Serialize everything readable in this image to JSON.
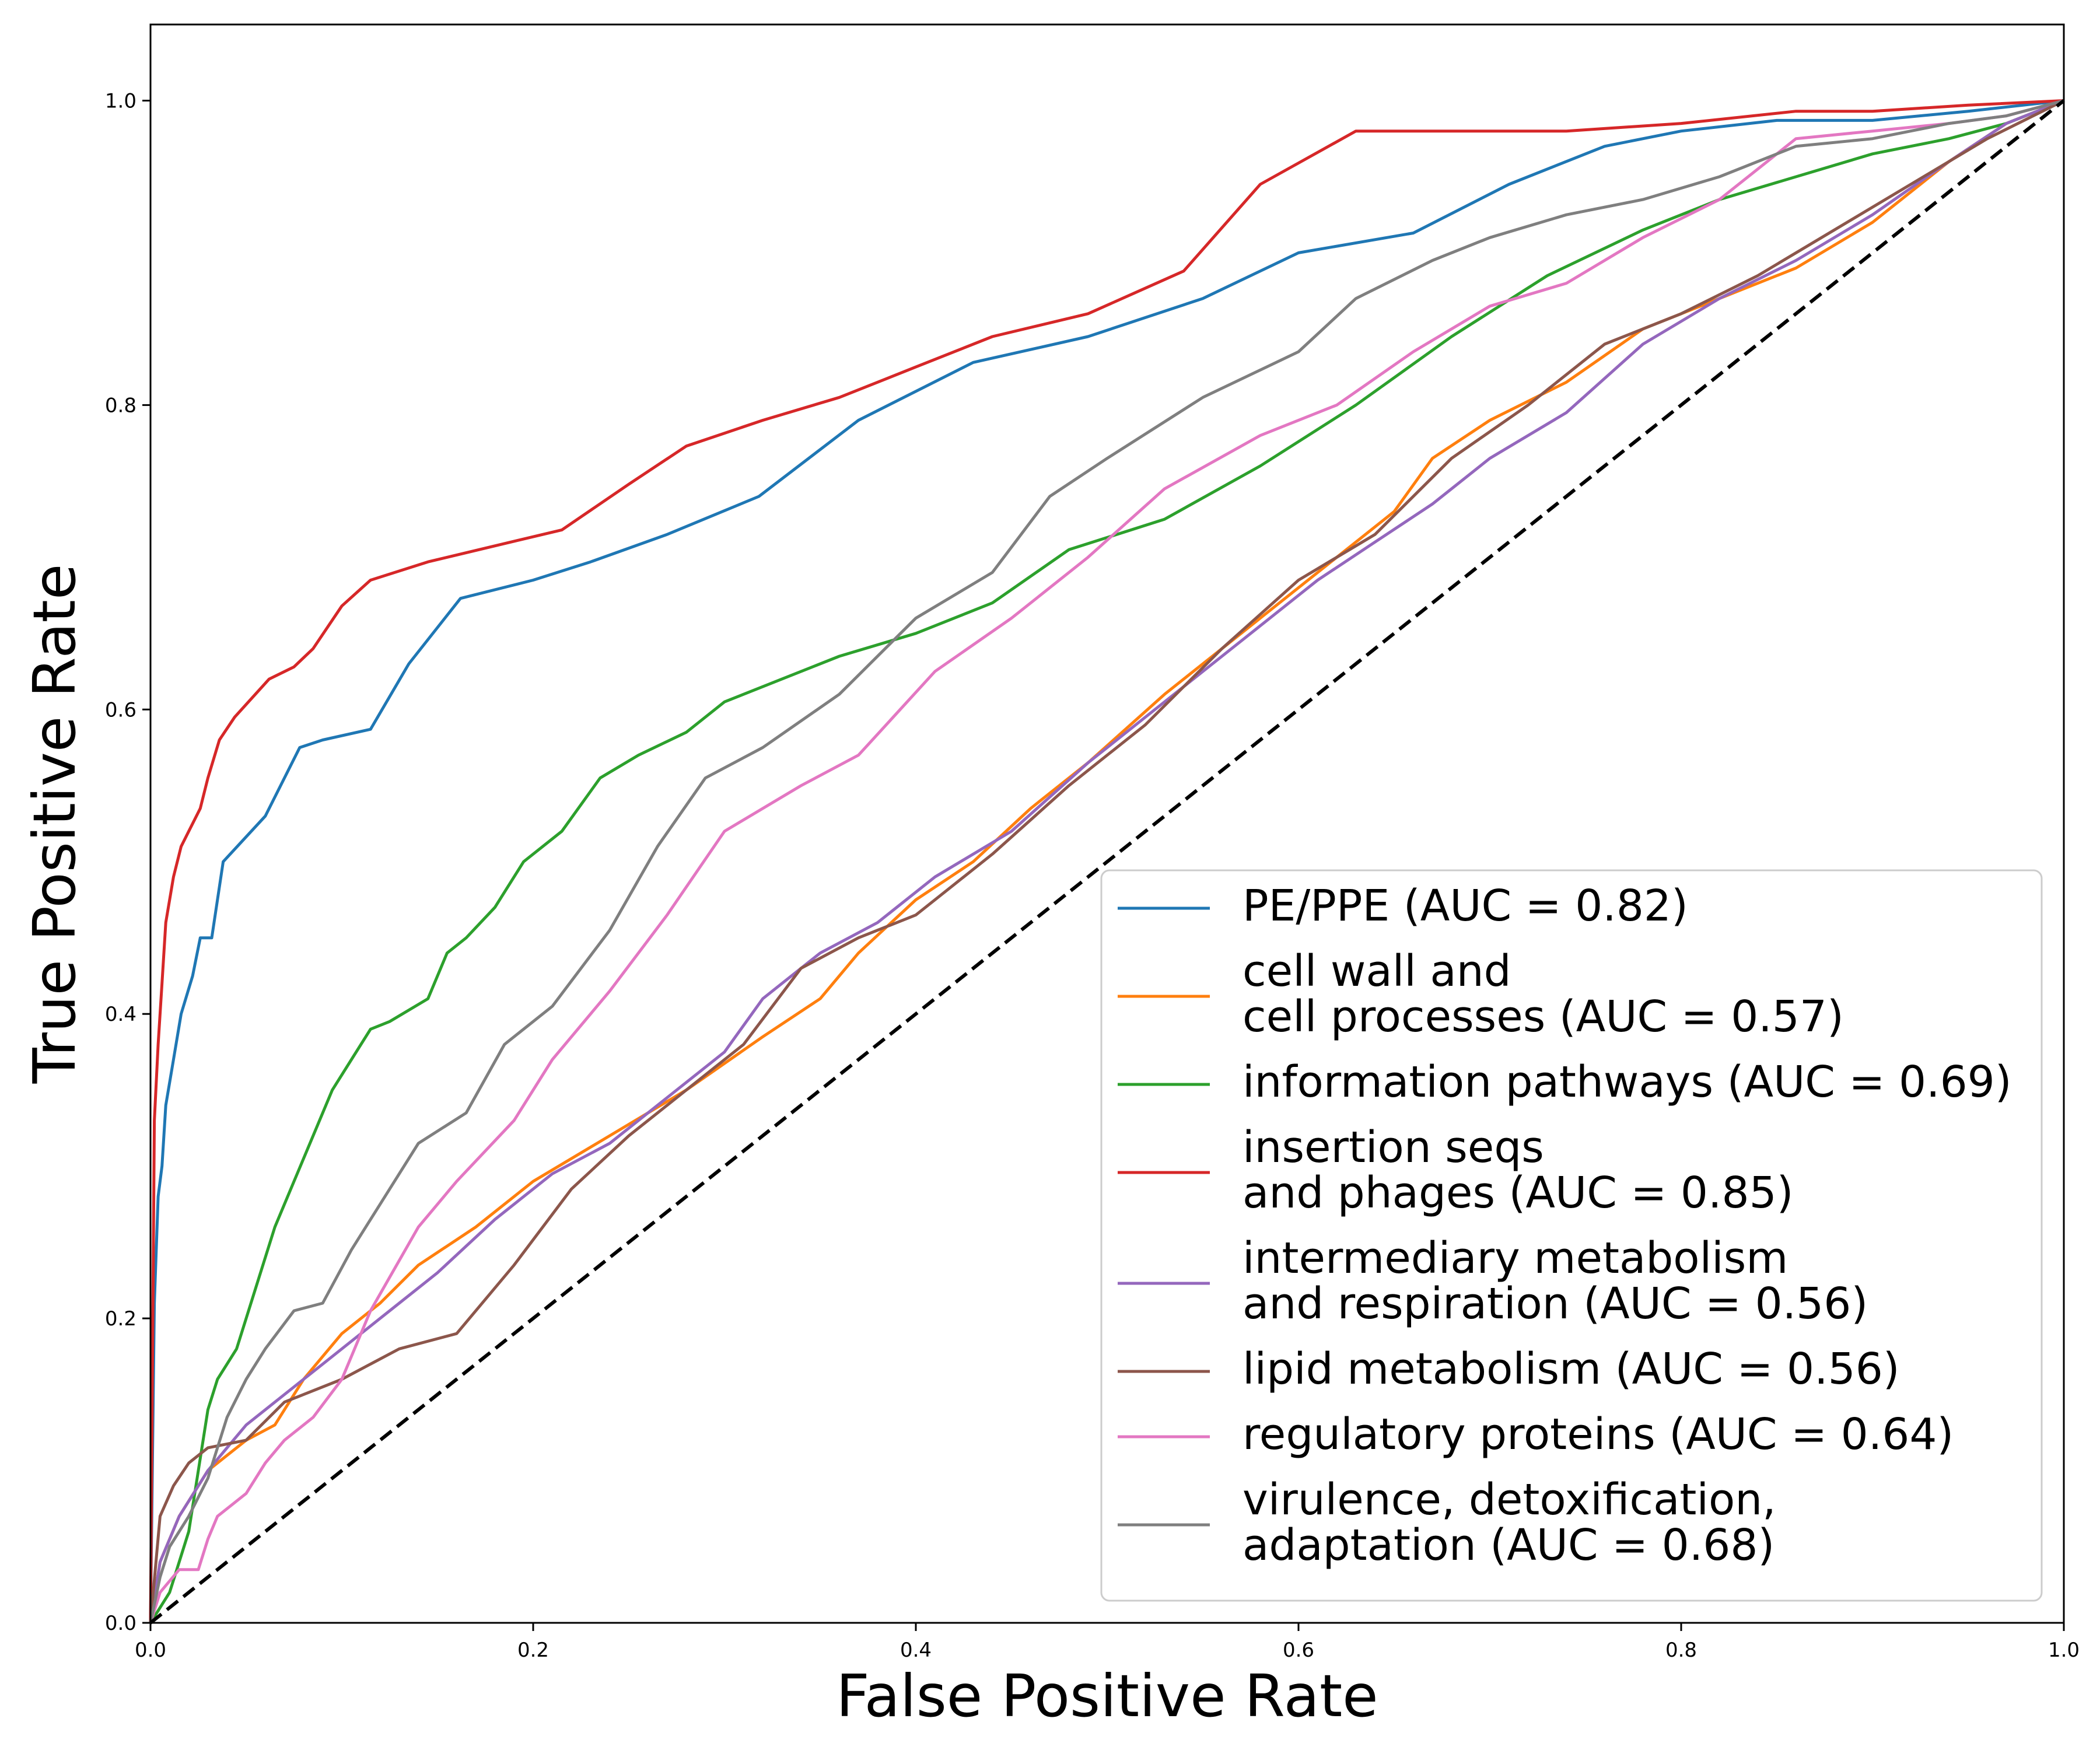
{
  "chart_data": {
    "type": "line",
    "title": "",
    "xlabel": "False Positive Rate",
    "ylabel": "True Positive Rate",
    "xlim": [
      0.0,
      1.0
    ],
    "ylim": [
      0.0,
      1.05
    ],
    "xticks": [
      "0.0",
      "0.2",
      "0.4",
      "0.6",
      "0.8",
      "1.0"
    ],
    "yticks": [
      "0.0",
      "0.2",
      "0.4",
      "0.6",
      "0.8",
      "1.0"
    ],
    "grid": false,
    "legend_position": "lower-right",
    "reference_line": {
      "style": "dashed",
      "color": "#000000",
      "x": [
        0,
        1
      ],
      "y": [
        0,
        1
      ]
    },
    "series": [
      {
        "name": "PE/PPE (AUC = 0.82)",
        "color": "#1f77b4",
        "x": [
          0.0,
          0.002,
          0.004,
          0.006,
          0.008,
          0.012,
          0.016,
          0.022,
          0.026,
          0.032,
          0.038,
          0.06,
          0.078,
          0.09,
          0.115,
          0.135,
          0.162,
          0.2,
          0.23,
          0.27,
          0.318,
          0.37,
          0.43,
          0.49,
          0.55,
          0.6,
          0.66,
          0.71,
          0.76,
          0.8,
          0.85,
          0.9,
          0.95,
          1.0
        ],
        "y": [
          0.0,
          0.21,
          0.28,
          0.3,
          0.34,
          0.37,
          0.4,
          0.425,
          0.45,
          0.45,
          0.5,
          0.53,
          0.575,
          0.58,
          0.587,
          0.63,
          0.673,
          0.685,
          0.697,
          0.715,
          0.74,
          0.79,
          0.828,
          0.845,
          0.87,
          0.9,
          0.913,
          0.945,
          0.97,
          0.98,
          0.987,
          0.987,
          0.993,
          1.0
        ]
      },
      {
        "name": "cell wall and\ncell processes (AUC = 0.57)",
        "color": "#ff7f0e",
        "x": [
          0.0,
          0.005,
          0.015,
          0.03,
          0.05,
          0.065,
          0.08,
          0.1,
          0.12,
          0.14,
          0.17,
          0.2,
          0.24,
          0.28,
          0.32,
          0.35,
          0.37,
          0.4,
          0.43,
          0.46,
          0.49,
          0.53,
          0.58,
          0.62,
          0.65,
          0.67,
          0.7,
          0.74,
          0.78,
          0.82,
          0.86,
          0.9,
          0.94,
          0.97,
          1.0
        ],
        "y": [
          0.0,
          0.04,
          0.07,
          0.1,
          0.12,
          0.13,
          0.16,
          0.19,
          0.21,
          0.235,
          0.26,
          0.29,
          0.32,
          0.35,
          0.385,
          0.41,
          0.44,
          0.475,
          0.5,
          0.535,
          0.565,
          0.61,
          0.66,
          0.7,
          0.73,
          0.765,
          0.79,
          0.815,
          0.85,
          0.87,
          0.89,
          0.92,
          0.96,
          0.985,
          1.0
        ]
      },
      {
        "name": "information pathways (AUC = 0.69)",
        "color": "#2ca02c",
        "x": [
          0.0,
          0.005,
          0.01,
          0.015,
          0.02,
          0.025,
          0.03,
          0.035,
          0.045,
          0.055,
          0.065,
          0.075,
          0.085,
          0.095,
          0.105,
          0.115,
          0.125,
          0.145,
          0.155,
          0.165,
          0.18,
          0.195,
          0.215,
          0.235,
          0.255,
          0.28,
          0.3,
          0.33,
          0.36,
          0.4,
          0.44,
          0.48,
          0.53,
          0.58,
          0.63,
          0.68,
          0.73,
          0.78,
          0.82,
          0.86,
          0.9,
          0.94,
          0.97,
          1.0
        ],
        "y": [
          0.0,
          0.01,
          0.02,
          0.04,
          0.06,
          0.1,
          0.14,
          0.16,
          0.18,
          0.22,
          0.26,
          0.29,
          0.32,
          0.35,
          0.37,
          0.39,
          0.395,
          0.41,
          0.44,
          0.45,
          0.47,
          0.5,
          0.52,
          0.555,
          0.57,
          0.585,
          0.605,
          0.62,
          0.635,
          0.65,
          0.67,
          0.705,
          0.725,
          0.76,
          0.8,
          0.845,
          0.885,
          0.915,
          0.935,
          0.95,
          0.965,
          0.975,
          0.985,
          1.0
        ]
      },
      {
        "name": "insertion seqs\nand phages (AUC = 0.85)",
        "color": "#d62728",
        "x": [
          0.0,
          0.002,
          0.004,
          0.006,
          0.008,
          0.012,
          0.016,
          0.02,
          0.026,
          0.03,
          0.036,
          0.044,
          0.062,
          0.075,
          0.085,
          0.1,
          0.115,
          0.145,
          0.175,
          0.215,
          0.25,
          0.28,
          0.32,
          0.36,
          0.4,
          0.44,
          0.49,
          0.54,
          0.58,
          0.63,
          0.7,
          0.74,
          0.8,
          0.86,
          0.9,
          0.95,
          1.0
        ],
        "y": [
          0.0,
          0.33,
          0.38,
          0.42,
          0.46,
          0.49,
          0.51,
          0.52,
          0.535,
          0.555,
          0.58,
          0.595,
          0.62,
          0.628,
          0.64,
          0.668,
          0.685,
          0.697,
          0.706,
          0.718,
          0.748,
          0.773,
          0.79,
          0.805,
          0.825,
          0.845,
          0.86,
          0.888,
          0.945,
          0.98,
          0.98,
          0.98,
          0.985,
          0.993,
          0.993,
          0.997,
          1.0
        ]
      },
      {
        "name": "intermediary metabolism\nand respiration (AUC = 0.56)",
        "color": "#9467bd",
        "x": [
          0.0,
          0.005,
          0.015,
          0.03,
          0.05,
          0.07,
          0.09,
          0.11,
          0.13,
          0.15,
          0.18,
          0.21,
          0.24,
          0.27,
          0.3,
          0.32,
          0.35,
          0.38,
          0.41,
          0.45,
          0.49,
          0.53,
          0.57,
          0.61,
          0.64,
          0.67,
          0.7,
          0.74,
          0.78,
          0.82,
          0.86,
          0.9,
          0.94,
          0.97,
          1.0
        ],
        "y": [
          0.0,
          0.04,
          0.07,
          0.1,
          0.13,
          0.15,
          0.17,
          0.19,
          0.21,
          0.23,
          0.265,
          0.295,
          0.315,
          0.345,
          0.375,
          0.41,
          0.44,
          0.46,
          0.49,
          0.52,
          0.565,
          0.605,
          0.645,
          0.685,
          0.71,
          0.735,
          0.765,
          0.795,
          0.84,
          0.87,
          0.895,
          0.925,
          0.96,
          0.985,
          1.0
        ]
      },
      {
        "name": "lipid metabolism (AUC = 0.56)",
        "color": "#8c564b",
        "x": [
          0.0,
          0.005,
          0.012,
          0.02,
          0.03,
          0.05,
          0.07,
          0.08,
          0.1,
          0.13,
          0.16,
          0.19,
          0.22,
          0.25,
          0.28,
          0.31,
          0.34,
          0.37,
          0.4,
          0.44,
          0.48,
          0.52,
          0.56,
          0.6,
          0.64,
          0.68,
          0.72,
          0.76,
          0.8,
          0.84,
          0.88,
          0.92,
          0.96,
          1.0
        ],
        "y": [
          0.0,
          0.07,
          0.09,
          0.105,
          0.115,
          0.12,
          0.145,
          0.15,
          0.16,
          0.18,
          0.19,
          0.235,
          0.285,
          0.32,
          0.35,
          0.38,
          0.43,
          0.45,
          0.465,
          0.505,
          0.55,
          0.59,
          0.64,
          0.685,
          0.715,
          0.765,
          0.8,
          0.84,
          0.86,
          0.885,
          0.915,
          0.945,
          0.975,
          1.0
        ]
      },
      {
        "name": "regulatory proteins (AUC = 0.64)",
        "color": "#e377c2",
        "x": [
          0.0,
          0.005,
          0.015,
          0.025,
          0.03,
          0.035,
          0.04,
          0.05,
          0.06,
          0.07,
          0.085,
          0.1,
          0.115,
          0.14,
          0.16,
          0.19,
          0.21,
          0.24,
          0.27,
          0.3,
          0.34,
          0.37,
          0.41,
          0.45,
          0.49,
          0.53,
          0.58,
          0.62,
          0.66,
          0.7,
          0.74,
          0.78,
          0.82,
          0.86,
          0.9,
          0.94,
          0.97,
          1.0
        ],
        "y": [
          0.0,
          0.02,
          0.035,
          0.035,
          0.055,
          0.07,
          0.075,
          0.085,
          0.105,
          0.12,
          0.135,
          0.16,
          0.205,
          0.26,
          0.29,
          0.33,
          0.37,
          0.415,
          0.465,
          0.52,
          0.55,
          0.57,
          0.625,
          0.66,
          0.7,
          0.745,
          0.78,
          0.8,
          0.835,
          0.865,
          0.88,
          0.91,
          0.935,
          0.975,
          0.98,
          0.985,
          0.99,
          1.0
        ]
      },
      {
        "name": "virulence, detoxification,\nadaptation (AUC = 0.68)",
        "color": "#7f7f7f",
        "x": [
          0.0,
          0.005,
          0.01,
          0.02,
          0.03,
          0.04,
          0.05,
          0.06,
          0.075,
          0.09,
          0.105,
          0.12,
          0.14,
          0.165,
          0.185,
          0.21,
          0.24,
          0.265,
          0.29,
          0.32,
          0.36,
          0.4,
          0.44,
          0.47,
          0.5,
          0.55,
          0.6,
          0.63,
          0.67,
          0.7,
          0.74,
          0.78,
          0.82,
          0.86,
          0.9,
          0.94,
          0.97,
          1.0
        ],
        "y": [
          0.0,
          0.03,
          0.05,
          0.07,
          0.095,
          0.135,
          0.16,
          0.18,
          0.205,
          0.21,
          0.245,
          0.275,
          0.315,
          0.335,
          0.38,
          0.405,
          0.455,
          0.51,
          0.555,
          0.575,
          0.61,
          0.66,
          0.69,
          0.74,
          0.765,
          0.805,
          0.835,
          0.87,
          0.895,
          0.91,
          0.925,
          0.935,
          0.95,
          0.97,
          0.975,
          0.985,
          0.99,
          1.0
        ]
      }
    ]
  }
}
